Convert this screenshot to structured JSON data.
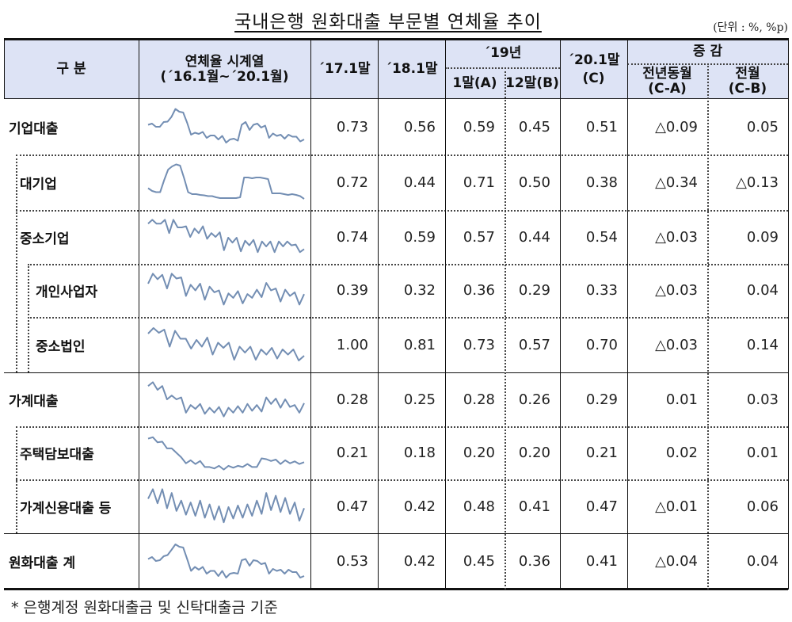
{
  "title": "국내은행 원화대출 부문별 연체율 추이",
  "unit": "(단위 : %, %p)",
  "header": {
    "category": "구  분",
    "series_title": "연체율 시계열",
    "series_range": "(´16.1월~´20.1월)",
    "col_17": "´17.1말",
    "col_18": "´18.1말",
    "year19": "´19년",
    "col_19a": "1말(A)",
    "col_19b": "12말(B)",
    "col_20_top": "´20.1말",
    "col_20_bottom": "(C)",
    "change": "증  감",
    "change_yoy_top": "전년동월",
    "change_yoy_bottom": "(C-A)",
    "change_mom_top": "전월",
    "change_mom_bottom": "(C-B)"
  },
  "rows": [
    {
      "label": "기업대출",
      "v17": "0.73",
      "v18": "0.56",
      "a": "0.59",
      "b": "0.45",
      "c": "0.51",
      "yoy": "△0.09",
      "mom": "0.05"
    },
    {
      "label": "대기업",
      "v17": "0.72",
      "v18": "0.44",
      "a": "0.71",
      "b": "0.50",
      "c": "0.38",
      "yoy": "△0.34",
      "mom": "△0.13"
    },
    {
      "label": "중소기업",
      "v17": "0.74",
      "v18": "0.59",
      "a": "0.57",
      "b": "0.44",
      "c": "0.54",
      "yoy": "△0.03",
      "mom": "0.09"
    },
    {
      "label": "개인사업자",
      "v17": "0.39",
      "v18": "0.32",
      "a": "0.36",
      "b": "0.29",
      "c": "0.33",
      "yoy": "△0.03",
      "mom": "0.04"
    },
    {
      "label": "중소법인",
      "v17": "1.00",
      "v18": "0.81",
      "a": "0.73",
      "b": "0.57",
      "c": "0.70",
      "yoy": "△0.03",
      "mom": "0.14"
    },
    {
      "label": "가계대출",
      "v17": "0.28",
      "v18": "0.25",
      "a": "0.28",
      "b": "0.26",
      "c": "0.29",
      "yoy": "0.01",
      "mom": "0.03"
    },
    {
      "label": "주택담보대출",
      "v17": "0.21",
      "v18": "0.18",
      "a": "0.20",
      "b": "0.20",
      "c": "0.21",
      "yoy": "0.02",
      "mom": "0.01"
    },
    {
      "label": "가계신용대출 등",
      "v17": "0.47",
      "v18": "0.42",
      "a": "0.48",
      "b": "0.41",
      "c": "0.47",
      "yoy": "△0.01",
      "mom": "0.06"
    },
    {
      "label": "원화대출 계",
      "v17": "0.53",
      "v18": "0.42",
      "a": "0.45",
      "b": "0.36",
      "c": "0.41",
      "yoy": "△0.04",
      "mom": "0.04"
    }
  ],
  "sparklines": {
    "color": "#5b7aa6",
    "corp": [
      0.55,
      0.58,
      0.5,
      0.5,
      0.62,
      0.63,
      0.75,
      0.95,
      0.88,
      0.86,
      0.6,
      0.3,
      0.35,
      0.32,
      0.37,
      0.22,
      0.28,
      0.28,
      0.18,
      0.27,
      0.1,
      0.18,
      0.2,
      0.15,
      0.55,
      0.62,
      0.42,
      0.55,
      0.58,
      0.48,
      0.53,
      0.22,
      0.33,
      0.27,
      0.3,
      0.2,
      0.3,
      0.25,
      0.25,
      0.13,
      0.18
    ],
    "large": [
      0.35,
      0.28,
      0.25,
      0.25,
      0.55,
      0.82,
      0.9,
      0.95,
      0.92,
      0.6,
      0.25,
      0.2,
      0.2,
      0.18,
      0.17,
      0.15,
      0.15,
      0.12,
      0.1,
      0.1,
      0.1,
      0.1,
      0.1,
      0.12,
      0.62,
      0.62,
      0.6,
      0.62,
      0.62,
      0.6,
      0.58,
      0.22,
      0.22,
      0.22,
      0.2,
      0.18,
      0.2,
      0.18,
      0.15,
      0.08
    ],
    "sme": [
      0.85,
      0.95,
      0.85,
      0.85,
      0.95,
      0.6,
      0.95,
      0.75,
      0.75,
      0.78,
      0.5,
      0.72,
      0.6,
      0.78,
      0.45,
      0.6,
      0.5,
      0.62,
      0.15,
      0.48,
      0.35,
      0.48,
      0.12,
      0.4,
      0.28,
      0.42,
      0.1,
      0.38,
      0.25,
      0.38,
      0.1,
      0.38,
      0.25,
      0.38,
      0.28,
      0.3,
      0.1,
      0.18
    ],
    "soho": [
      0.68,
      0.95,
      0.8,
      0.92,
      0.55,
      0.95,
      0.82,
      0.85,
      0.35,
      0.65,
      0.5,
      0.68,
      0.25,
      0.6,
      0.45,
      0.5,
      0.12,
      0.42,
      0.3,
      0.48,
      0.15,
      0.4,
      0.3,
      0.52,
      0.32,
      0.7,
      0.5,
      0.55,
      0.2,
      0.52,
      0.35,
      0.45,
      0.12,
      0.4
    ],
    "smecorp": [
      0.78,
      0.92,
      0.8,
      0.88,
      0.45,
      0.85,
      0.65,
      0.65,
      0.4,
      0.62,
      0.45,
      0.68,
      0.25,
      0.55,
      0.42,
      0.55,
      0.12,
      0.45,
      0.3,
      0.45,
      0.12,
      0.38,
      0.25,
      0.42,
      0.15,
      0.38,
      0.25,
      0.38,
      0.1,
      0.22
    ],
    "household": [
      0.85,
      0.95,
      0.75,
      0.85,
      0.5,
      0.6,
      0.5,
      0.55,
      0.15,
      0.35,
      0.25,
      0.38,
      0.12,
      0.28,
      0.15,
      0.3,
      0.05,
      0.28,
      0.15,
      0.32,
      0.15,
      0.38,
      0.2,
      0.35,
      0.18,
      0.55,
      0.38,
      0.52,
      0.28,
      0.5,
      0.3,
      0.35,
      0.15,
      0.4
    ],
    "mortgage": [
      0.88,
      0.92,
      0.78,
      0.8,
      0.62,
      0.62,
      0.5,
      0.38,
      0.22,
      0.3,
      0.2,
      0.28,
      0.12,
      0.12,
      0.08,
      0.15,
      0.05,
      0.15,
      0.1,
      0.15,
      0.12,
      0.2,
      0.12,
      0.12,
      0.35,
      0.33,
      0.28,
      0.32,
      0.2,
      0.3,
      0.22,
      0.27,
      0.2,
      0.25
    ],
    "credit": [
      0.7,
      0.95,
      0.58,
      0.95,
      0.45,
      0.85,
      0.38,
      0.65,
      0.28,
      0.6,
      0.25,
      0.65,
      0.2,
      0.55,
      0.15,
      0.5,
      0.08,
      0.48,
      0.18,
      0.52,
      0.2,
      0.55,
      0.25,
      0.65,
      0.3,
      0.85,
      0.4,
      0.78,
      0.35,
      0.72,
      0.3,
      0.6,
      0.12,
      0.45
    ],
    "total": [
      0.55,
      0.6,
      0.5,
      0.52,
      0.62,
      0.65,
      0.78,
      0.92,
      0.86,
      0.84,
      0.55,
      0.25,
      0.35,
      0.28,
      0.35,
      0.18,
      0.25,
      0.25,
      0.12,
      0.25,
      0.08,
      0.18,
      0.2,
      0.18,
      0.52,
      0.55,
      0.38,
      0.52,
      0.5,
      0.42,
      0.45,
      0.18,
      0.3,
      0.25,
      0.28,
      0.18,
      0.28,
      0.22,
      0.22,
      0.08,
      0.12
    ]
  },
  "footer": "* 은행계정 원화대출금 및 신탁대출금 기준"
}
